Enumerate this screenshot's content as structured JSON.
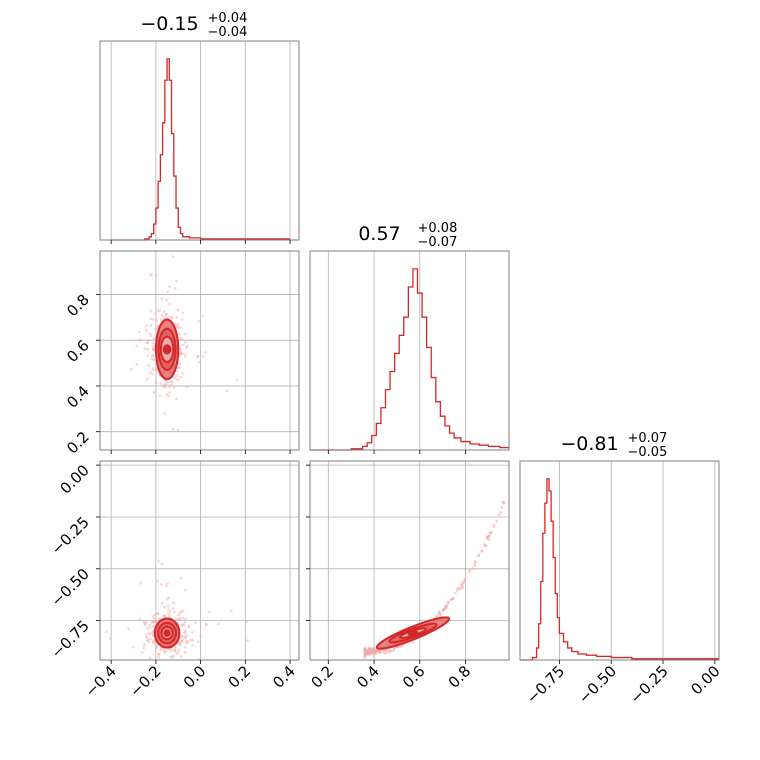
{
  "colors": {
    "series": "#d62728",
    "fill_dark": "#e05a5a",
    "fill_light": "#f3c6c6",
    "scatter": "#f0a9a9",
    "grid": "#b0b0b0",
    "frame": "#808080"
  },
  "chart_data": {
    "type": "corner",
    "grid": true,
    "parameters": [
      {
        "title_value": "−0.15",
        "title_upper": "+0.04",
        "title_lower": "−0.04",
        "range": [
          -0.45,
          0.44
        ],
        "ticks": [
          -0.4,
          -0.2,
          0.0,
          0.2,
          0.4
        ],
        "tick_labels": [
          "−0.4",
          "−0.2",
          "0.0",
          "0.2",
          "0.4"
        ]
      },
      {
        "title_value": "0.57",
        "title_upper": "+0.08",
        "title_lower": "−0.07",
        "range": [
          0.12,
          0.99
        ],
        "ticks": [
          0.2,
          0.4,
          0.6,
          0.8
        ],
        "tick_labels": [
          "0.2",
          "0.4",
          "0.6",
          "0.8"
        ]
      },
      {
        "title_value": "−0.81",
        "title_upper": "+0.07",
        "title_lower": "−0.05",
        "range": [
          -0.94,
          0.02
        ],
        "ticks": [
          -0.75,
          -0.5,
          -0.25,
          0.0
        ],
        "tick_labels": [
          "−0.75",
          "−0.50",
          "−0.25",
          "0.00"
        ]
      }
    ],
    "histograms": [
      {
        "parameter": 0,
        "x": [
          -0.4,
          -0.25,
          -0.23,
          -0.22,
          -0.21,
          -0.2,
          -0.19,
          -0.18,
          -0.17,
          -0.16,
          -0.15,
          -0.14,
          -0.13,
          -0.12,
          -0.11,
          -0.1,
          -0.09,
          -0.08,
          -0.05,
          0.0,
          0.1,
          0.2,
          0.3,
          0.4
        ],
        "y": [
          0,
          1,
          3,
          6,
          15,
          30,
          55,
          80,
          110,
          150,
          170,
          150,
          100,
          60,
          30,
          12,
          6,
          3,
          2,
          1,
          1,
          1,
          1,
          0
        ]
      },
      {
        "parameter": 1,
        "x": [
          0.12,
          0.3,
          0.35,
          0.37,
          0.39,
          0.41,
          0.43,
          0.45,
          0.47,
          0.49,
          0.51,
          0.53,
          0.55,
          0.57,
          0.59,
          0.61,
          0.63,
          0.65,
          0.67,
          0.69,
          0.71,
          0.73,
          0.75,
          0.78,
          0.82,
          0.86,
          0.9,
          0.95,
          0.99
        ],
        "y": [
          0,
          1,
          3,
          6,
          12,
          22,
          35,
          50,
          65,
          80,
          95,
          110,
          135,
          150,
          130,
          110,
          85,
          60,
          40,
          28,
          20,
          14,
          10,
          7,
          5,
          4,
          3,
          2,
          0
        ]
      },
      {
        "parameter": 2,
        "x": [
          -0.94,
          -0.88,
          -0.86,
          -0.85,
          -0.84,
          -0.83,
          -0.82,
          -0.81,
          -0.8,
          -0.79,
          -0.78,
          -0.77,
          -0.76,
          -0.75,
          -0.73,
          -0.71,
          -0.69,
          -0.66,
          -0.62,
          -0.57,
          -0.5,
          -0.4,
          -0.3,
          -0.2,
          0.02
        ],
        "y": [
          0,
          2,
          10,
          30,
          65,
          105,
          130,
          150,
          140,
          115,
          85,
          55,
          35,
          22,
          15,
          10,
          7,
          5,
          4,
          3,
          2,
          1,
          1,
          1,
          0
        ]
      }
    ],
    "pairs": [
      {
        "x_param": 0,
        "y_param": 1,
        "center": [
          -0.15,
          0.56
        ],
        "contours": [
          {
            "rx": 0.015,
            "ry": 0.018,
            "rot": 0
          },
          {
            "rx": 0.028,
            "ry": 0.055,
            "rot": 0
          },
          {
            "rx": 0.038,
            "ry": 0.09,
            "rot": 0
          },
          {
            "rx": 0.05,
            "ry": 0.13,
            "rot": 0
          }
        ],
        "scatter_spread": [
          0.07,
          0.14
        ]
      },
      {
        "x_param": 0,
        "y_param": 2,
        "center": [
          -0.15,
          -0.81
        ],
        "contours": [
          {
            "rx": 0.012,
            "ry": 0.014,
            "rot": 0
          },
          {
            "rx": 0.025,
            "ry": 0.03,
            "rot": 0
          },
          {
            "rx": 0.04,
            "ry": 0.05,
            "rot": 0
          },
          {
            "rx": 0.055,
            "ry": 0.07,
            "rot": 0
          }
        ],
        "scatter_spread": [
          0.08,
          0.09
        ]
      },
      {
        "x_param": 1,
        "y_param": 2,
        "curve": {
          "x0": 0.36,
          "y0": -0.9,
          "x1": 0.97,
          "y1": -0.18,
          "power": 2.2
        },
        "center": [
          0.57,
          -0.81
        ],
        "contours": [
          {
            "rx": 0.02,
            "ry": 0.006,
            "rot": -12
          },
          {
            "rx": 0.06,
            "ry": 0.012,
            "rot": -18
          },
          {
            "rx": 0.11,
            "ry": 0.02,
            "rot": -20
          },
          {
            "rx": 0.17,
            "ry": 0.03,
            "rot": -22
          }
        ]
      }
    ]
  }
}
